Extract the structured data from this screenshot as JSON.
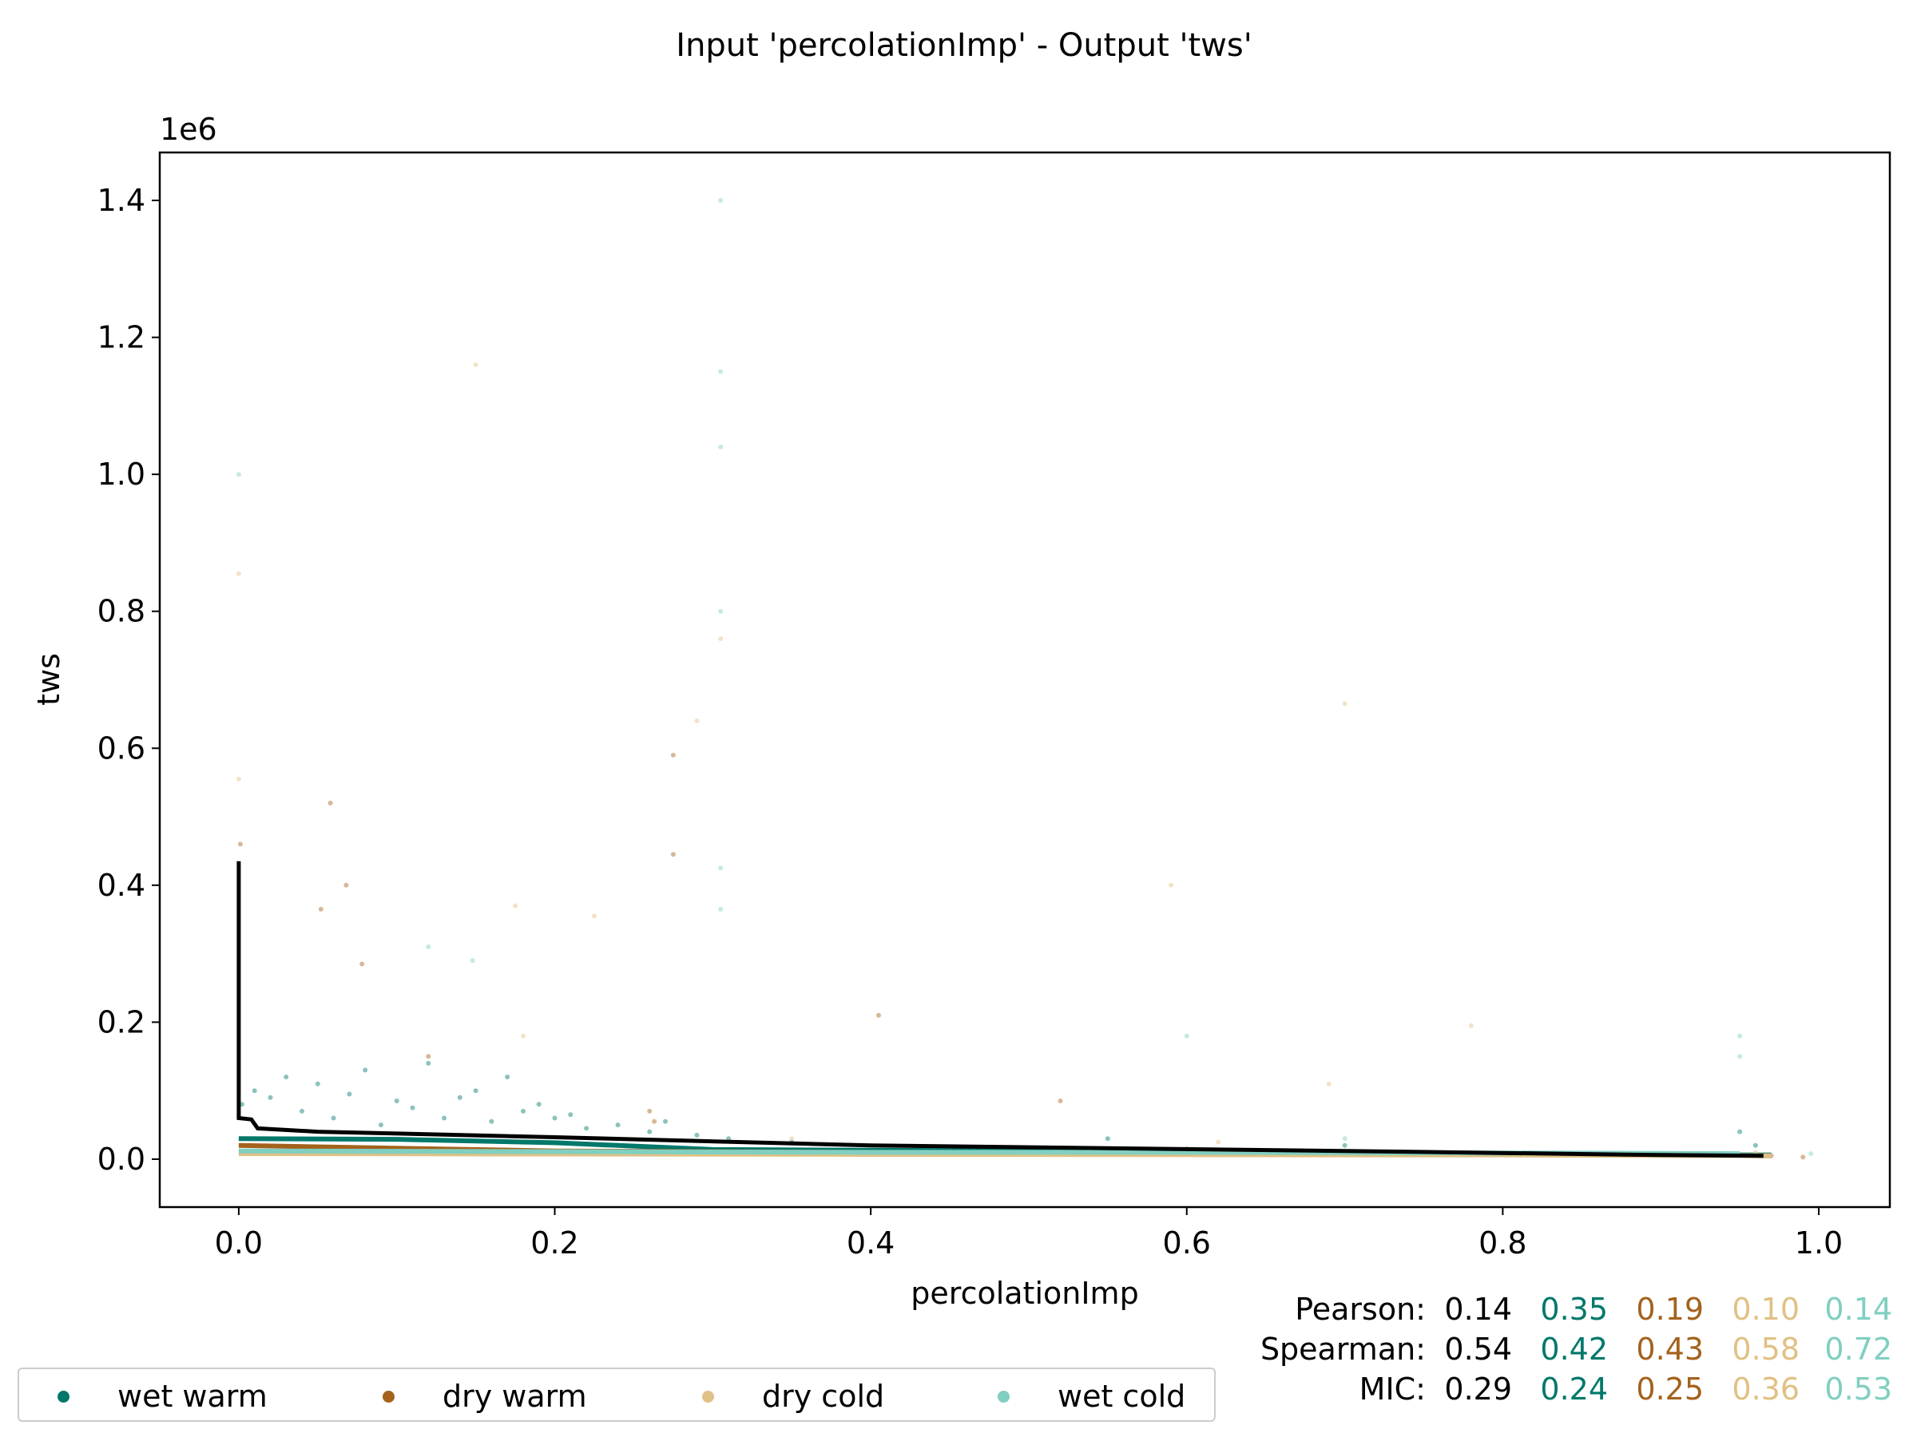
{
  "colors": {
    "wet_warm": "#01786a",
    "dry_warm": "#a4621c",
    "dry_cold": "#e0c185",
    "wet_cold": "#80cfc0",
    "all": "#000000"
  },
  "chart_data": {
    "type": "scatter",
    "title": "Input 'percolationImp' - Output 'tws'",
    "xlabel": "percolationImp",
    "ylabel": "tws",
    "y_offset_text": "1e6",
    "xlim": [
      -0.05,
      1.045
    ],
    "ylim": [
      -70000,
      1470000
    ],
    "xticks": [
      0.0,
      0.2,
      0.4,
      0.6,
      0.8,
      1.0
    ],
    "xtick_labels": [
      "0.0",
      "0.2",
      "0.4",
      "0.6",
      "0.8",
      "1.0"
    ],
    "yticks": [
      0,
      200000,
      400000,
      600000,
      800000,
      1000000,
      1200000,
      1400000
    ],
    "ytick_labels": [
      "0.0",
      "0.2",
      "0.4",
      "0.6",
      "0.8",
      "1.0",
      "1.2",
      "1.4"
    ],
    "grid": false,
    "series": [
      {
        "name": "wet warm",
        "color_key": "wet_warm",
        "points": [
          [
            0.002,
            80000
          ],
          [
            0.01,
            100000
          ],
          [
            0.02,
            90000
          ],
          [
            0.03,
            120000
          ],
          [
            0.04,
            70000
          ],
          [
            0.05,
            110000
          ],
          [
            0.06,
            60000
          ],
          [
            0.07,
            95000
          ],
          [
            0.08,
            130000
          ],
          [
            0.09,
            50000
          ],
          [
            0.1,
            85000
          ],
          [
            0.11,
            75000
          ],
          [
            0.12,
            140000
          ],
          [
            0.13,
            60000
          ],
          [
            0.14,
            90000
          ],
          [
            0.15,
            100000
          ],
          [
            0.16,
            55000
          ],
          [
            0.17,
            120000
          ],
          [
            0.18,
            70000
          ],
          [
            0.19,
            80000
          ],
          [
            0.2,
            60000
          ],
          [
            0.21,
            65000
          ],
          [
            0.22,
            45000
          ],
          [
            0.24,
            50000
          ],
          [
            0.26,
            40000
          ],
          [
            0.27,
            55000
          ],
          [
            0.29,
            35000
          ],
          [
            0.31,
            30000
          ],
          [
            0.35,
            25000
          ],
          [
            0.55,
            30000
          ],
          [
            0.7,
            20000
          ],
          [
            0.95,
            40000
          ],
          [
            0.96,
            20000
          ]
        ],
        "trend": [
          [
            0.0,
            30000
          ],
          [
            0.1,
            29000
          ],
          [
            0.2,
            24000
          ],
          [
            0.3,
            14000
          ],
          [
            0.5,
            12000
          ],
          [
            0.7,
            10000
          ],
          [
            0.9,
            7000
          ],
          [
            0.97,
            6000
          ]
        ]
      },
      {
        "name": "dry warm",
        "color_key": "dry_warm",
        "points": [
          [
            0.001,
            460000
          ],
          [
            0.052,
            365000
          ],
          [
            0.058,
            520000
          ],
          [
            0.068,
            400000
          ],
          [
            0.078,
            285000
          ],
          [
            0.12,
            150000
          ],
          [
            0.26,
            70000
          ],
          [
            0.263,
            55000
          ],
          [
            0.275,
            590000
          ],
          [
            0.275,
            445000
          ],
          [
            0.405,
            210000
          ],
          [
            0.52,
            85000
          ],
          [
            0.45,
            18000
          ],
          [
            0.6,
            15000
          ],
          [
            0.97,
            5000
          ],
          [
            0.99,
            3000
          ]
        ],
        "trend": [
          [
            0.0,
            20000
          ],
          [
            0.2,
            12000
          ],
          [
            0.4,
            10000
          ],
          [
            0.6,
            9000
          ],
          [
            0.8,
            7000
          ],
          [
            0.97,
            5000
          ]
        ]
      },
      {
        "name": "dry cold",
        "color_key": "dry_cold",
        "points": [
          [
            0.0,
            555000
          ],
          [
            0.0,
            855000
          ],
          [
            0.225,
            355000
          ],
          [
            0.29,
            640000
          ],
          [
            0.305,
            760000
          ],
          [
            0.175,
            370000
          ],
          [
            0.7,
            665000
          ],
          [
            0.59,
            400000
          ],
          [
            0.15,
            1160000
          ],
          [
            0.18,
            180000
          ],
          [
            0.35,
            30000
          ],
          [
            0.62,
            25000
          ],
          [
            0.69,
            110000
          ],
          [
            0.78,
            195000
          ],
          [
            0.96,
            10000
          ]
        ],
        "trend": [
          [
            0.0,
            8000
          ],
          [
            0.2,
            7500
          ],
          [
            0.4,
            7000
          ],
          [
            0.6,
            6500
          ],
          [
            0.8,
            6000
          ],
          [
            0.97,
            5000
          ]
        ]
      },
      {
        "name": "wet cold",
        "color_key": "wet_cold",
        "points": [
          [
            0.0,
            1000000
          ],
          [
            0.305,
            1400000
          ],
          [
            0.305,
            1150000
          ],
          [
            0.305,
            1040000
          ],
          [
            0.305,
            800000
          ],
          [
            0.305,
            425000
          ],
          [
            0.305,
            365000
          ],
          [
            0.12,
            310000
          ],
          [
            0.148,
            290000
          ],
          [
            0.6,
            180000
          ],
          [
            0.95,
            180000
          ],
          [
            0.95,
            150000
          ],
          [
            0.95,
            40000
          ],
          [
            0.995,
            8000
          ],
          [
            0.7,
            30000
          ]
        ],
        "trend": [
          [
            0.0,
            12000
          ],
          [
            0.2,
            11000
          ],
          [
            0.4,
            10000
          ],
          [
            0.6,
            10000
          ],
          [
            0.8,
            9000
          ],
          [
            0.95,
            8000
          ]
        ]
      },
      {
        "name": "",
        "color_key": "all",
        "trend": [
          [
            0.0,
            435000
          ],
          [
            0.0,
            60000
          ],
          [
            0.008,
            58000
          ],
          [
            0.012,
            45000
          ],
          [
            0.05,
            40000
          ],
          [
            0.2,
            32000
          ],
          [
            0.4,
            20000
          ],
          [
            0.7,
            12000
          ],
          [
            0.9,
            6000
          ],
          [
            0.965,
            5000
          ]
        ]
      }
    ]
  },
  "stats": {
    "rows": [
      {
        "label": "Pearson:",
        "all": "0.14",
        "wet_warm": "0.35",
        "dry_warm": "0.19",
        "dry_cold": "0.10",
        "wet_cold": "0.14"
      },
      {
        "label": "Spearman:",
        "all": "0.54",
        "wet_warm": "0.42",
        "dry_warm": "0.43",
        "dry_cold": "0.58",
        "wet_cold": "0.72"
      },
      {
        "label": "MIC:",
        "all": "0.29",
        "wet_warm": "0.24",
        "dry_warm": "0.25",
        "dry_cold": "0.36",
        "wet_cold": "0.53"
      }
    ]
  },
  "legend": {
    "items": [
      {
        "label": "wet warm",
        "color_key": "wet_warm"
      },
      {
        "label": "dry warm",
        "color_key": "dry_warm"
      },
      {
        "label": "dry cold",
        "color_key": "dry_cold"
      },
      {
        "label": "wet cold",
        "color_key": "wet_cold"
      }
    ]
  }
}
